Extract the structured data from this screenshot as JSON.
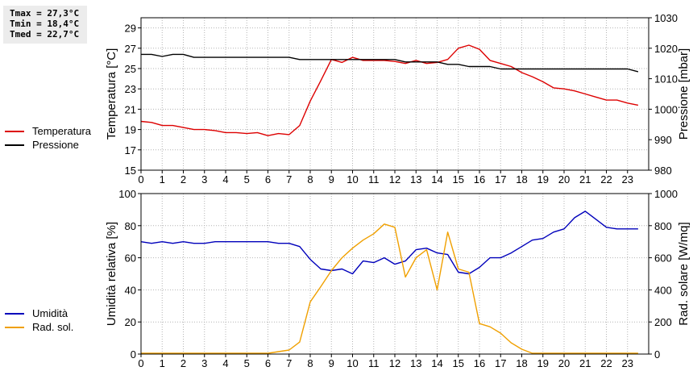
{
  "stats": {
    "tmax": "Tmax = 27,3°C",
    "tmin": "Tmin = 18,4°C",
    "tmed": "Tmed = 22,7°C"
  },
  "chart_data": [
    {
      "type": "line",
      "ylabel": "Temperatura [°C]",
      "y2label": "Pressione [mbar]",
      "xlim": [
        0,
        24
      ],
      "xticks": [
        "0",
        "1",
        "2",
        "3",
        "4",
        "5",
        "6",
        "7",
        "8",
        "9",
        "10",
        "11",
        "12",
        "13",
        "14",
        "15",
        "16",
        "17",
        "18",
        "19",
        "20",
        "21",
        "22",
        "23"
      ],
      "ylim": [
        15,
        30
      ],
      "yticks": [
        "15",
        "17",
        "19",
        "21",
        "23",
        "25",
        "27",
        "29"
      ],
      "y2lim": [
        980,
        1030
      ],
      "y2ticks": [
        "980",
        "990",
        "1000",
        "1010",
        "1020",
        "1030"
      ],
      "grid": true,
      "legend_position": "left",
      "series": [
        {
          "name": "Temperatura",
          "axis": "left",
          "color": "#dd0000",
          "x": [
            0,
            0.5,
            1,
            1.5,
            2,
            2.5,
            3,
            3.5,
            4,
            4.5,
            5,
            5.5,
            6,
            6.5,
            7,
            7.5,
            8,
            8.5,
            9,
            9.5,
            10,
            10.5,
            11,
            11.5,
            12,
            12.5,
            13,
            13.5,
            14,
            14.5,
            15,
            15.5,
            16,
            16.5,
            17,
            17.5,
            18,
            18.5,
            19,
            19.5,
            20,
            20.5,
            21,
            21.5,
            22,
            22.5,
            23,
            23.5
          ],
          "values": [
            19.8,
            19.7,
            19.4,
            19.4,
            19.2,
            19.0,
            19.0,
            18.9,
            18.7,
            18.7,
            18.6,
            18.7,
            18.4,
            18.6,
            18.5,
            19.4,
            21.8,
            23.8,
            25.9,
            25.6,
            26.1,
            25.8,
            25.8,
            25.8,
            25.7,
            25.5,
            25.8,
            25.5,
            25.6,
            25.9,
            27.0,
            27.3,
            26.9,
            25.8,
            25.5,
            25.2,
            24.6,
            24.2,
            23.7,
            23.1,
            23.0,
            22.8,
            22.5,
            22.2,
            21.9,
            21.9,
            21.6,
            21.4
          ]
        },
        {
          "name": "Pressione",
          "axis": "right",
          "color": "#000000",
          "x": [
            0,
            0.5,
            1,
            1.5,
            2,
            2.5,
            3,
            3.5,
            4,
            4.5,
            5,
            5.5,
            6,
            6.5,
            7,
            7.5,
            8,
            8.5,
            9,
            9.5,
            10,
            10.5,
            11,
            11.5,
            12,
            12.5,
            13,
            13.5,
            14,
            14.5,
            15,
            15.5,
            16,
            16.5,
            17,
            17.5,
            18,
            18.5,
            19,
            19.5,
            20,
            20.5,
            21,
            21.5,
            22,
            22.5,
            23,
            23.5
          ],
          "values": [
            1018,
            1018,
            1017.3,
            1018,
            1018,
            1017,
            1017,
            1017,
            1017,
            1017,
            1017,
            1017,
            1017,
            1017,
            1017,
            1016.3,
            1016.3,
            1016.3,
            1016.3,
            1016.3,
            1016.3,
            1016.3,
            1016.3,
            1016.3,
            1016.3,
            1015.5,
            1015.5,
            1015.5,
            1015.5,
            1014.7,
            1014.7,
            1014,
            1014,
            1014,
            1013.2,
            1013.2,
            1013.2,
            1013.2,
            1013.2,
            1013.2,
            1013.2,
            1013.2,
            1013.2,
            1013.2,
            1013.2,
            1013.2,
            1013.2,
            1012.3
          ]
        }
      ]
    },
    {
      "type": "line",
      "ylabel": "Umidità relativa [%]",
      "y2label": "Rad. solare [W/mq]",
      "xlim": [
        0,
        24
      ],
      "xticks": [
        "0",
        "1",
        "2",
        "3",
        "4",
        "5",
        "6",
        "7",
        "8",
        "9",
        "10",
        "11",
        "12",
        "13",
        "14",
        "15",
        "16",
        "17",
        "18",
        "19",
        "20",
        "21",
        "22",
        "23"
      ],
      "ylim": [
        0,
        100
      ],
      "yticks": [
        "0",
        "20",
        "40",
        "60",
        "80",
        "100"
      ],
      "y2lim": [
        0,
        1000
      ],
      "y2ticks": [
        "0",
        "200",
        "400",
        "600",
        "800",
        "1000"
      ],
      "grid": true,
      "legend_position": "left",
      "series": [
        {
          "name": "Umidità",
          "axis": "left",
          "color": "#0000bb",
          "x": [
            0,
            0.5,
            1,
            1.5,
            2,
            2.5,
            3,
            3.5,
            4,
            4.5,
            5,
            5.5,
            6,
            6.5,
            7,
            7.5,
            8,
            8.5,
            9,
            9.5,
            10,
            10.5,
            11,
            11.5,
            12,
            12.5,
            13,
            13.5,
            14,
            14.5,
            15,
            15.5,
            16,
            16.5,
            17,
            17.5,
            18,
            18.5,
            19,
            19.5,
            20,
            20.5,
            21,
            21.5,
            22,
            22.5,
            23,
            23.5
          ],
          "values": [
            70,
            69,
            70,
            69,
            70,
            69,
            69,
            70,
            70,
            70,
            70,
            70,
            70,
            69,
            69,
            67,
            59,
            53,
            52,
            53,
            50,
            58,
            57,
            60,
            56,
            58,
            65,
            66,
            63,
            62,
            51,
            50,
            54,
            60,
            60,
            63,
            67,
            71,
            72,
            76,
            78,
            85,
            89,
            84,
            79,
            78,
            78,
            78
          ]
        },
        {
          "name": "Rad. sol.",
          "axis": "right",
          "color": "#f0a000",
          "x": [
            0,
            0.5,
            1,
            1.5,
            2,
            2.5,
            3,
            3.5,
            4,
            4.5,
            5,
            5.5,
            6,
            6.5,
            7,
            7.5,
            8,
            8.5,
            9,
            9.5,
            10,
            10.5,
            11,
            11.5,
            12,
            12.5,
            13,
            13.5,
            14,
            14.5,
            15,
            15.5,
            16,
            16.5,
            17,
            17.5,
            18,
            18.5,
            19,
            19.5,
            20,
            20.5,
            21,
            21.5,
            22,
            22.5,
            23,
            23.5
          ],
          "values": [
            5,
            5,
            5,
            5,
            5,
            5,
            5,
            5,
            5,
            5,
            5,
            5,
            5,
            15,
            25,
            75,
            325,
            420,
            520,
            600,
            660,
            710,
            750,
            810,
            790,
            480,
            600,
            650,
            400,
            760,
            530,
            510,
            190,
            170,
            130,
            70,
            30,
            5,
            5,
            5,
            5,
            5,
            5,
            5,
            5,
            5,
            5,
            5
          ]
        }
      ]
    }
  ]
}
